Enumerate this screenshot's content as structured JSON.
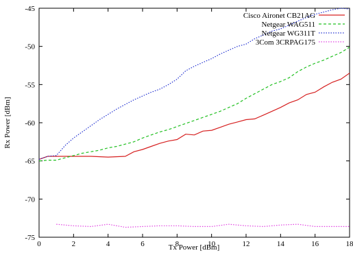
{
  "chart_data": {
    "type": "line",
    "title": "",
    "xlabel": "Tx Power [dBm]",
    "ylabel": "Rx Power [dBm]",
    "xlim": [
      0,
      18
    ],
    "ylim": [
      -75,
      -45
    ],
    "x_ticks": [
      "0",
      "2",
      "4",
      "6",
      "8",
      "10",
      "12",
      "14",
      "16",
      "18"
    ],
    "y_ticks": [
      "-45",
      "-50",
      "-55",
      "-60",
      "-65",
      "-70",
      "-75"
    ],
    "grid": false,
    "legend_position": "top-right",
    "series": [
      {
        "name": "Cisco Aironet CB21AG",
        "color": "#d62020",
        "dash": "solid",
        "x": [
          0,
          0.5,
          1,
          2,
          3,
          4,
          5,
          5.5,
          6,
          6.5,
          7,
          7.5,
          8,
          8.5,
          9,
          9.5,
          10,
          10.5,
          11,
          11.5,
          12,
          12.5,
          13,
          13.5,
          14,
          14.5,
          15,
          15.5,
          16,
          16.5,
          17,
          17.5,
          18
        ],
        "y": [
          -64.8,
          -64.4,
          -64.4,
          -64.4,
          -64.4,
          -64.5,
          -64.4,
          -63.8,
          -63.5,
          -63.1,
          -62.7,
          -62.4,
          -62.2,
          -61.5,
          -61.6,
          -61.1,
          -61.0,
          -60.6,
          -60.2,
          -59.9,
          -59.6,
          -59.5,
          -59.0,
          -58.5,
          -58.0,
          -57.4,
          -57.0,
          -56.3,
          -56.0,
          -55.3,
          -54.7,
          -54.3,
          -53.5
        ]
      },
      {
        "name": "Netgear WAG511",
        "color": "#22c022",
        "dash": "dashed",
        "x": [
          0,
          0.5,
          1,
          1.5,
          2,
          2.5,
          3,
          3.5,
          4,
          4.5,
          5,
          5.5,
          6,
          6.5,
          7,
          7.5,
          8,
          8.5,
          9,
          9.5,
          10,
          10.5,
          11,
          11.5,
          12,
          12.5,
          13,
          13.5,
          14,
          14.5,
          15,
          15.5,
          16,
          16.5,
          17,
          17.5,
          18
        ],
        "y": [
          -65.0,
          -64.9,
          -64.9,
          -64.6,
          -64.3,
          -64.0,
          -63.8,
          -63.6,
          -63.3,
          -63.1,
          -62.8,
          -62.5,
          -62.0,
          -61.6,
          -61.2,
          -60.9,
          -60.5,
          -60.1,
          -59.7,
          -59.3,
          -58.9,
          -58.5,
          -58.0,
          -57.5,
          -56.8,
          -56.2,
          -55.6,
          -55.0,
          -54.6,
          -54.1,
          -53.3,
          -52.7,
          -52.2,
          -51.8,
          -51.3,
          -50.8,
          -50.1
        ]
      },
      {
        "name": "Netgear WG311T",
        "color": "#2030d0",
        "dash": "dotted",
        "x": [
          0,
          0.5,
          1,
          1.5,
          2,
          2.5,
          3,
          3.5,
          4,
          4.5,
          5,
          5.5,
          6,
          6.5,
          7,
          7.5,
          8,
          8.5,
          9,
          9.5,
          10,
          10.5,
          11,
          11.5,
          12,
          12.5,
          13,
          13.5,
          14,
          14.5,
          15,
          15.5,
          16,
          16.5,
          17,
          17.5,
          18
        ],
        "y": [
          -64.8,
          -64.4,
          -64.3,
          -63.0,
          -62.0,
          -61.2,
          -60.4,
          -59.6,
          -58.9,
          -58.2,
          -57.6,
          -57.0,
          -56.5,
          -56.0,
          -55.6,
          -55.0,
          -54.3,
          -53.2,
          -52.6,
          -52.1,
          -51.6,
          -51.0,
          -50.5,
          -50.0,
          -49.7,
          -49.0,
          -48.5,
          -48.0,
          -47.7,
          -47.2,
          -46.7,
          -46.2,
          -45.8,
          -45.5,
          -45.2,
          -45.0,
          -45.1
        ]
      },
      {
        "name": "3Com 3CRPAG175",
        "color": "#e040e0",
        "dash": "dotted",
        "x": [
          1,
          2,
          3,
          4,
          5,
          6,
          7,
          8,
          9,
          10,
          11,
          12,
          13,
          14,
          15,
          16,
          17,
          18
        ],
        "y": [
          -73.3,
          -73.5,
          -73.6,
          -73.3,
          -73.7,
          -73.6,
          -73.5,
          -73.5,
          -73.6,
          -73.6,
          -73.3,
          -73.5,
          -73.6,
          -73.4,
          -73.3,
          -73.6,
          -73.6,
          -73.6
        ]
      }
    ]
  }
}
